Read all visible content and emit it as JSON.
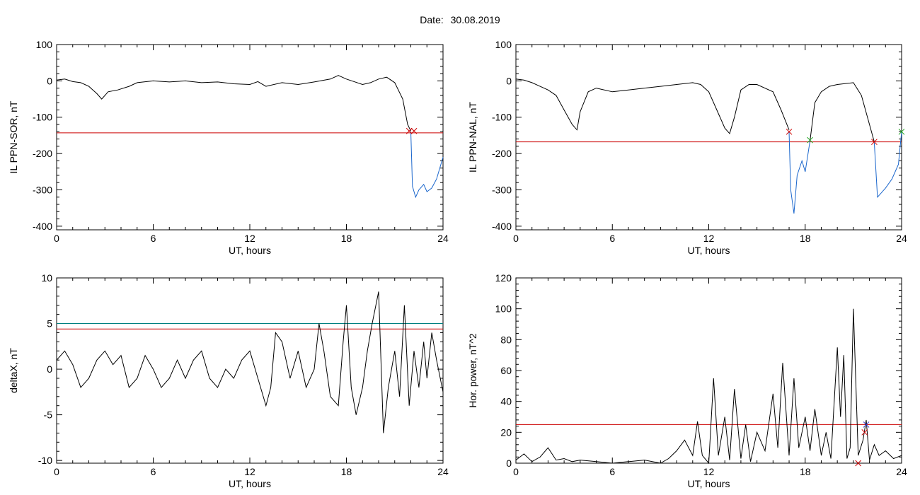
{
  "header": {
    "date_label": "Date:",
    "date_value": "30.08.2019"
  },
  "chart_data": [
    {
      "type": "line",
      "id": "p1",
      "xlabel": "UT, hours",
      "ylabel": "IL PPN-SOR, nT",
      "xlim": [
        0,
        24
      ],
      "ylim": [
        -410,
        100
      ],
      "xticks": [
        0,
        6,
        12,
        18,
        24
      ],
      "yticks": [
        -400,
        -300,
        -200,
        -100,
        0,
        100
      ],
      "threshold_lines": [
        {
          "y": -143,
          "color": "#cc0000"
        }
      ],
      "series": [
        {
          "color": "#000000",
          "x": [
            0,
            0.5,
            1,
            1.5,
            2,
            2.5,
            2.8,
            3.2,
            3.8,
            4.5,
            5,
            6,
            7,
            8,
            9,
            10,
            11,
            12,
            12.5,
            13,
            14,
            15,
            16,
            17,
            17.5,
            18,
            19,
            19.5,
            20,
            20.5,
            21,
            21.5,
            21.8,
            22
          ],
          "y": [
            2,
            5,
            -2,
            -5,
            -15,
            -35,
            -50,
            -30,
            -25,
            -15,
            -5,
            0,
            -3,
            0,
            -5,
            -3,
            -8,
            -10,
            -2,
            -15,
            -5,
            -10,
            -3,
            5,
            15,
            5,
            -10,
            -5,
            5,
            10,
            -5,
            -50,
            -120,
            -138
          ]
        },
        {
          "color": "#1a66cc",
          "x": [
            22,
            22.1,
            22.3,
            22.5,
            22.8,
            23,
            23.3,
            23.6,
            24
          ],
          "y": [
            -140,
            -290,
            -320,
            -300,
            -285,
            -305,
            -295,
            -270,
            -210
          ]
        }
      ],
      "markers": [
        {
          "x": 21.9,
          "y": -138,
          "color": "#cc0000"
        },
        {
          "x": 22.2,
          "y": -138,
          "color": "#cc0000"
        }
      ]
    },
    {
      "type": "line",
      "id": "p2",
      "xlabel": "UT, hours",
      "ylabel": "IL PPN-NAL, nT",
      "xlim": [
        0,
        24
      ],
      "ylim": [
        -410,
        100
      ],
      "xticks": [
        0,
        6,
        12,
        18,
        24
      ],
      "yticks": [
        -400,
        -300,
        -200,
        -100,
        0,
        100
      ],
      "threshold_lines": [
        {
          "y": -168,
          "color": "#cc0000"
        }
      ],
      "series": [
        {
          "color": "#000000",
          "x": [
            0,
            0.5,
            1,
            1.5,
            2,
            2.5,
            3,
            3.5,
            3.8,
            4,
            4.5,
            5,
            6,
            7,
            8,
            9,
            10,
            11,
            11.5,
            12,
            12.5,
            13,
            13.3,
            13.6,
            14,
            14.5,
            15,
            16,
            16.5,
            17
          ],
          "y": [
            5,
            2,
            -5,
            -15,
            -25,
            -40,
            -80,
            -120,
            -135,
            -85,
            -30,
            -20,
            -30,
            -25,
            -20,
            -15,
            -10,
            -5,
            -10,
            -30,
            -80,
            -130,
            -145,
            -100,
            -25,
            -10,
            -10,
            -30,
            -80,
            -135
          ]
        },
        {
          "color": "#1a66cc",
          "x": [
            17,
            17.1,
            17.3,
            17.5,
            17.8,
            18,
            18.3
          ],
          "y": [
            -140,
            -300,
            -365,
            -260,
            -220,
            -250,
            -165
          ]
        },
        {
          "color": "#000000",
          "x": [
            18.3,
            18.6,
            19,
            19.5,
            20,
            21,
            21.5,
            22,
            22.3
          ],
          "y": [
            -165,
            -60,
            -30,
            -15,
            -10,
            -5,
            -40,
            -120,
            -168
          ]
        },
        {
          "color": "#1a66cc",
          "x": [
            22.3,
            22.5,
            22.8,
            23,
            23.4,
            23.8,
            24
          ],
          "y": [
            -170,
            -320,
            -305,
            -295,
            -270,
            -230,
            -140
          ]
        }
      ],
      "markers": [
        {
          "x": 17,
          "y": -140,
          "color": "#cc0000"
        },
        {
          "x": 18.3,
          "y": -163,
          "color": "#22aa22"
        },
        {
          "x": 22.3,
          "y": -168,
          "color": "#cc0000"
        },
        {
          "x": 24,
          "y": -140,
          "color": "#22aa22"
        }
      ]
    },
    {
      "type": "line",
      "id": "p3",
      "xlabel": "UT, hours",
      "ylabel": "deltaX, nT",
      "xlim": [
        0,
        24
      ],
      "ylim": [
        -10.3,
        10
      ],
      "xticks": [
        0,
        6,
        12,
        18,
        24
      ],
      "yticks": [
        -10,
        -5,
        0,
        5,
        10
      ],
      "threshold_lines": [
        {
          "y": 5,
          "color": "#008080"
        },
        {
          "y": 4.4,
          "color": "#cc0000"
        }
      ],
      "series": [
        {
          "color": "#000000",
          "x": [
            0,
            0.5,
            1,
            1.5,
            2,
            2.5,
            3,
            3.5,
            4,
            4.5,
            5,
            5.5,
            6,
            6.5,
            7,
            7.5,
            8,
            8.5,
            9,
            9.5,
            10,
            10.5,
            11,
            11.5,
            12,
            12.5,
            13,
            13.3,
            13.6,
            14,
            14.5,
            15,
            15.5,
            16,
            16.3,
            16.6,
            17,
            17.5,
            17.8,
            18,
            18.3,
            18.6,
            19,
            19.3,
            19.6,
            20,
            20.3,
            20.6,
            21,
            21.3,
            21.6,
            21.9,
            22.2,
            22.5,
            22.8,
            23,
            23.3,
            23.6,
            24
          ],
          "y": [
            1,
            2,
            0.5,
            -2,
            -1,
            1,
            2,
            0.5,
            1.5,
            -2,
            -1,
            1.5,
            0,
            -2,
            -1,
            1,
            -1,
            1,
            2,
            -1,
            -2,
            0,
            -1,
            1,
            2,
            -1,
            -4,
            -2,
            4,
            3,
            -1,
            2,
            -2,
            0,
            5,
            2,
            -3,
            -4,
            3,
            7,
            -2,
            -5,
            -2,
            2,
            5,
            8.5,
            -7,
            -2,
            2,
            -3,
            7,
            -4,
            2,
            -2,
            3,
            -1,
            4,
            1,
            -2.5
          ]
        }
      ],
      "markers": []
    },
    {
      "type": "line",
      "id": "p4",
      "xlabel": "UT, hours",
      "ylabel": "Hor. power, nT^2",
      "xlim": [
        0,
        24
      ],
      "ylim": [
        0,
        120
      ],
      "xticks": [
        0,
        6,
        12,
        18,
        24
      ],
      "yticks": [
        0,
        20,
        40,
        60,
        80,
        100,
        120
      ],
      "threshold_lines": [
        {
          "y": 25,
          "color": "#cc0000"
        }
      ],
      "series": [
        {
          "color": "#000000",
          "x": [
            0,
            0.5,
            1,
            1.5,
            2,
            2.5,
            3,
            3.5,
            4,
            5,
            6,
            7,
            8,
            9,
            9.5,
            10,
            10.5,
            11,
            11.3,
            11.6,
            12,
            12.3,
            12.6,
            13,
            13.3,
            13.6,
            14,
            14.3,
            14.6,
            15,
            15.5,
            16,
            16.3,
            16.6,
            17,
            17.3,
            17.6,
            18,
            18.3,
            18.6,
            19,
            19.3,
            19.6,
            20,
            20.2,
            20.4,
            20.6,
            20.8,
            21,
            21.3,
            21.6,
            21.8,
            22,
            22.3,
            22.6,
            23,
            23.5,
            24
          ],
          "y": [
            2,
            6,
            1,
            4,
            10,
            2,
            3,
            1,
            2,
            1,
            0,
            1,
            2,
            0,
            3,
            8,
            15,
            5,
            27,
            5,
            0,
            55,
            5,
            30,
            2,
            48,
            3,
            25,
            1,
            20,
            8,
            45,
            10,
            65,
            5,
            55,
            10,
            30,
            8,
            35,
            5,
            20,
            3,
            75,
            30,
            70,
            3,
            10,
            100,
            5,
            15,
            28,
            2,
            12,
            5,
            8,
            3,
            5
          ]
        }
      ],
      "markers": [
        {
          "x": 21.8,
          "y": 25,
          "color": "#3333cc"
        },
        {
          "x": 21.7,
          "y": 20,
          "color": "#cc0000"
        },
        {
          "x": 21.3,
          "y": 0,
          "color": "#cc0000"
        }
      ]
    }
  ]
}
